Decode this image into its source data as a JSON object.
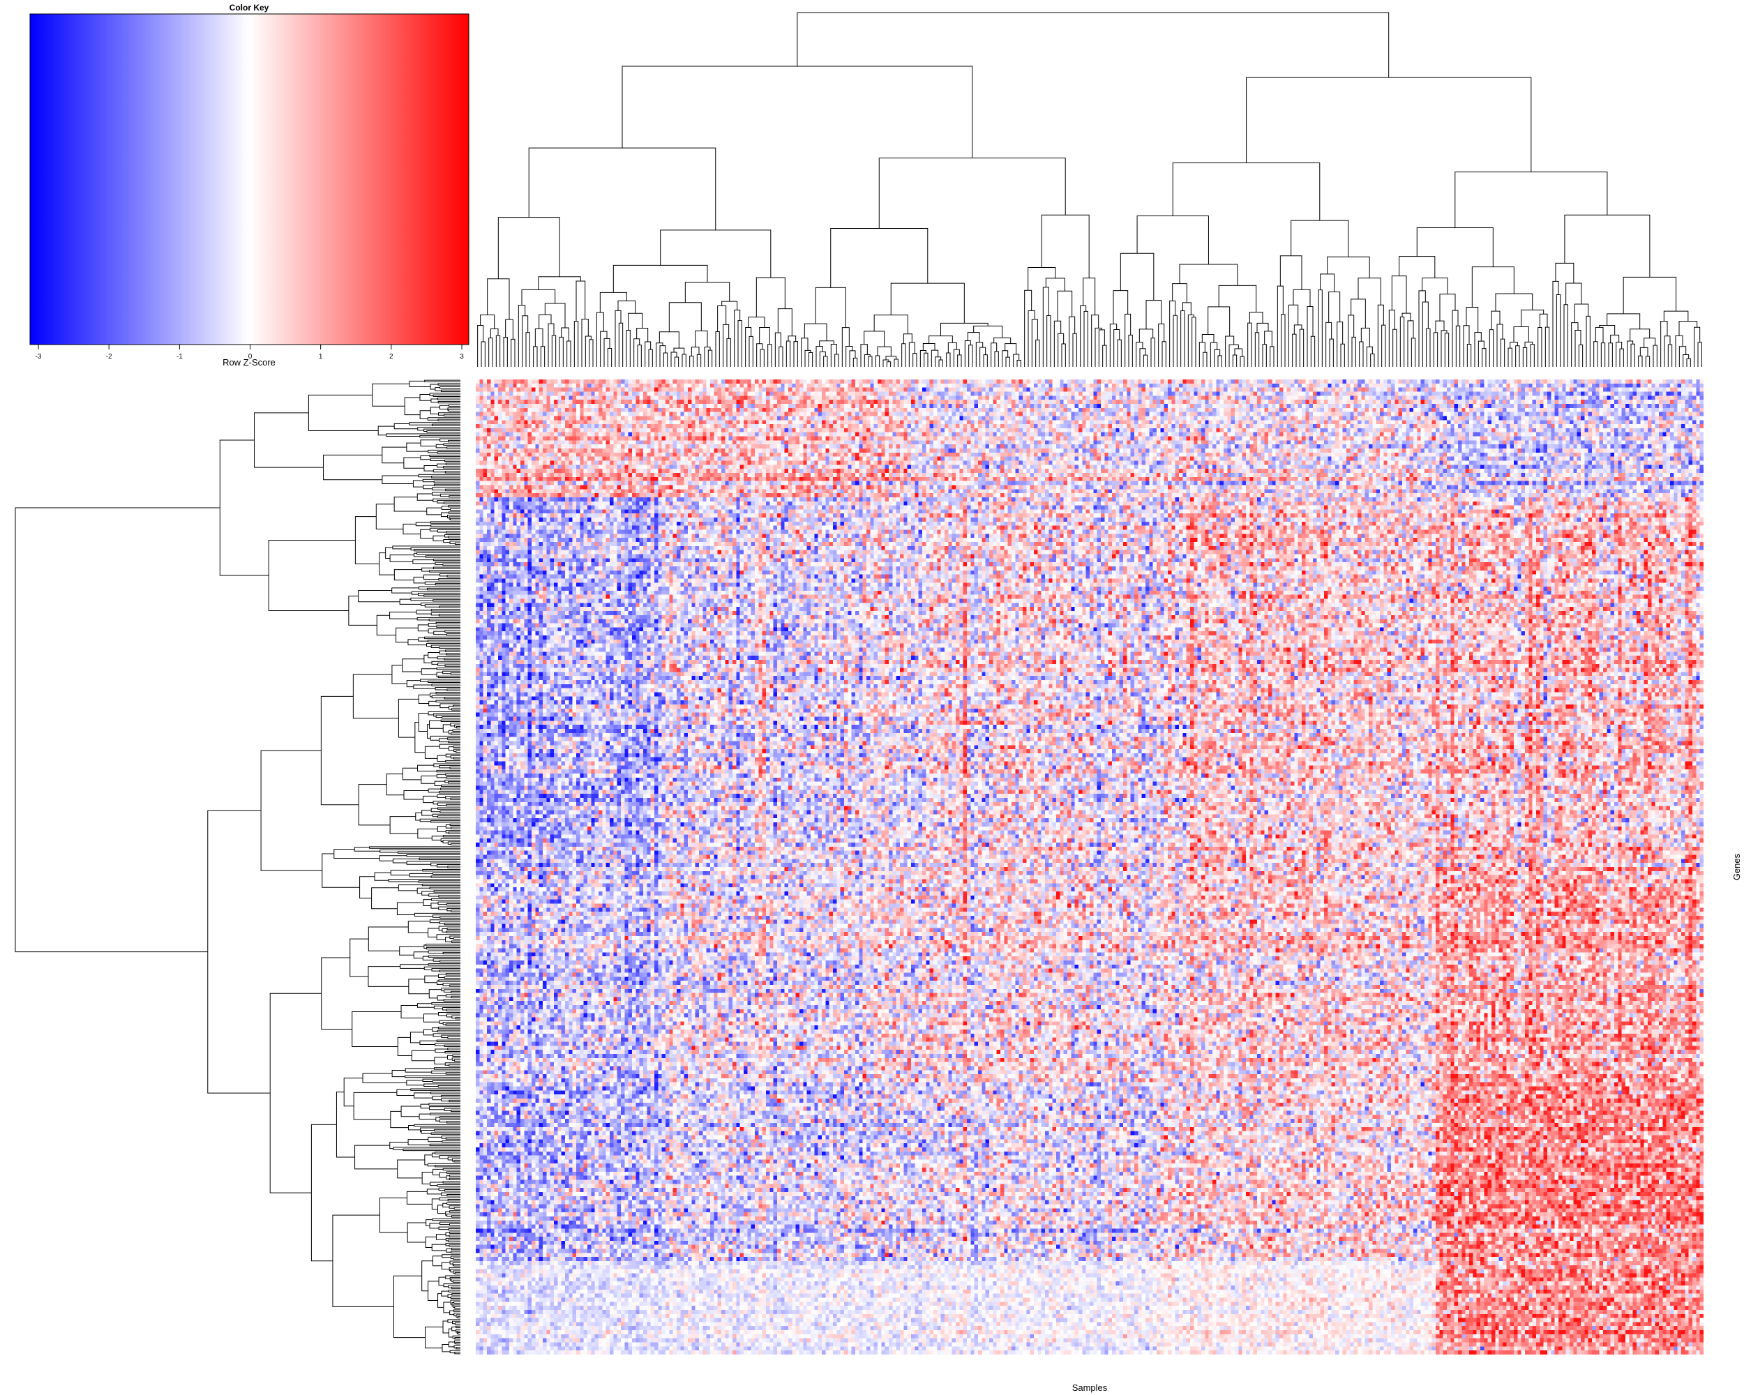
{
  "chart_data": {
    "type": "heatmap",
    "color_key": {
      "title": "Color Key",
      "xlabel": "Row Z-Score",
      "range": [
        -3,
        3
      ],
      "ticks": [
        "-3",
        "-2",
        "-1",
        "0",
        "1",
        "2",
        "3"
      ],
      "colors": {
        "low": "#0000ff",
        "mid": "#ffffff",
        "high": "#ff0000"
      }
    },
    "xlabel": "Samples",
    "ylabel": "Genes",
    "n_samples": 330,
    "n_gene_row_blocks": 240,
    "row_dendrogram": "left",
    "column_dendrogram": "top",
    "column_blocks": [
      {
        "samples": [
          0,
          50
        ],
        "pattern": "blue-leaning"
      },
      {
        "samples": [
          50,
          120
        ],
        "pattern": "mixed"
      },
      {
        "samples": [
          120,
          185
        ],
        "pattern": "mixed"
      },
      {
        "samples": [
          185,
          260
        ],
        "pattern": "red-leaning"
      },
      {
        "samples": [
          260,
          330
        ],
        "pattern": "strong-red-lower"
      }
    ],
    "gene_row_blocks": [
      {
        "rows": [
          0,
          30
        ],
        "pattern": "red-upper-left"
      },
      {
        "rows": [
          30,
          75
        ],
        "pattern": "blue-left"
      },
      {
        "rows": [
          75,
          120
        ],
        "pattern": "blue-left"
      },
      {
        "rows": [
          120,
          175
        ],
        "pattern": "mixed"
      },
      {
        "rows": [
          175,
          210
        ],
        "pattern": "red-right"
      },
      {
        "rows": [
          210,
          240
        ],
        "pattern": "red-right-strong"
      }
    ]
  }
}
